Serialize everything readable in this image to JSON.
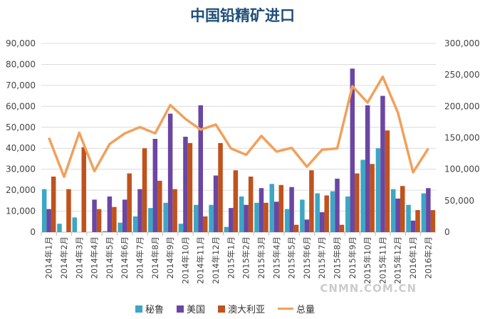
{
  "chart_data": {
    "type": "bar+line",
    "title": "中国铅精矿进口",
    "categories": [
      "2014年1月",
      "2014年2月",
      "2014年3月",
      "2014年4月",
      "2014年5月",
      "2014年6月",
      "2014年7月",
      "2014年8月",
      "2014年9月",
      "2014年10月",
      "2014年11月",
      "2014年12月",
      "2015年1月",
      "2015年2月",
      "2015年3月",
      "2015年4月",
      "2015年5月",
      "2015年6月",
      "2015年7月",
      "2015年8月",
      "2015年9月",
      "2015年10月",
      "2015年11月",
      "2015年12月",
      "2016年1月",
      "2016年2月"
    ],
    "series": [
      {
        "name": "秘鲁",
        "type": "bar",
        "axis": "left",
        "color": "#3ba7c4",
        "values": [
          20500,
          4000,
          7000,
          0,
          500,
          4500,
          7500,
          11500,
          14000,
          4000,
          13000,
          13000,
          2500,
          17000,
          14000,
          23000,
          11000,
          15500,
          18500,
          19500,
          17000,
          34500,
          40000,
          20500,
          13000,
          18500
        ]
      },
      {
        "name": "美国",
        "type": "bar",
        "axis": "left",
        "color": "#6b46a3",
        "values": [
          11000,
          0,
          0,
          15500,
          17000,
          15500,
          20500,
          44500,
          56500,
          45500,
          60500,
          27000,
          11500,
          13000,
          21000,
          14500,
          21500,
          6000,
          9500,
          25500,
          78000,
          60500,
          65000,
          16000,
          5500,
          21000
        ]
      },
      {
        "name": "澳大利亚",
        "type": "bar",
        "axis": "left",
        "color": "#c0521c",
        "values": [
          26500,
          20500,
          40500,
          11000,
          12000,
          28000,
          40000,
          24500,
          20500,
          42500,
          7500,
          42500,
          29500,
          26500,
          14000,
          22500,
          3500,
          29500,
          17500,
          3500,
          28000,
          32500,
          48500,
          22000,
          10500,
          10500
        ]
      },
      {
        "name": "总量",
        "type": "line",
        "axis": "right",
        "color": "#f2a05a",
        "values": [
          150000,
          88000,
          158000,
          97000,
          140000,
          157000,
          167000,
          157000,
          202000,
          180000,
          163000,
          171000,
          133000,
          123000,
          153000,
          128000,
          134000,
          104000,
          131000,
          133000,
          232000,
          206000,
          247000,
          190000,
          95000,
          133000
        ]
      }
    ],
    "y_left": {
      "min": 0,
      "max": 90000,
      "ticks": [
        "0",
        "10,000",
        "20,000",
        "30,000",
        "40,000",
        "50,000",
        "60,000",
        "70,000",
        "80,000",
        "90,000"
      ]
    },
    "y_right": {
      "min": 0,
      "max": 300000,
      "ticks": [
        "0",
        "50,000",
        "100,000",
        "150,000",
        "200,000",
        "250,000",
        "300,000"
      ]
    },
    "grid": true,
    "legend": "bottom"
  },
  "watermark": "CNMN.COM.CN"
}
